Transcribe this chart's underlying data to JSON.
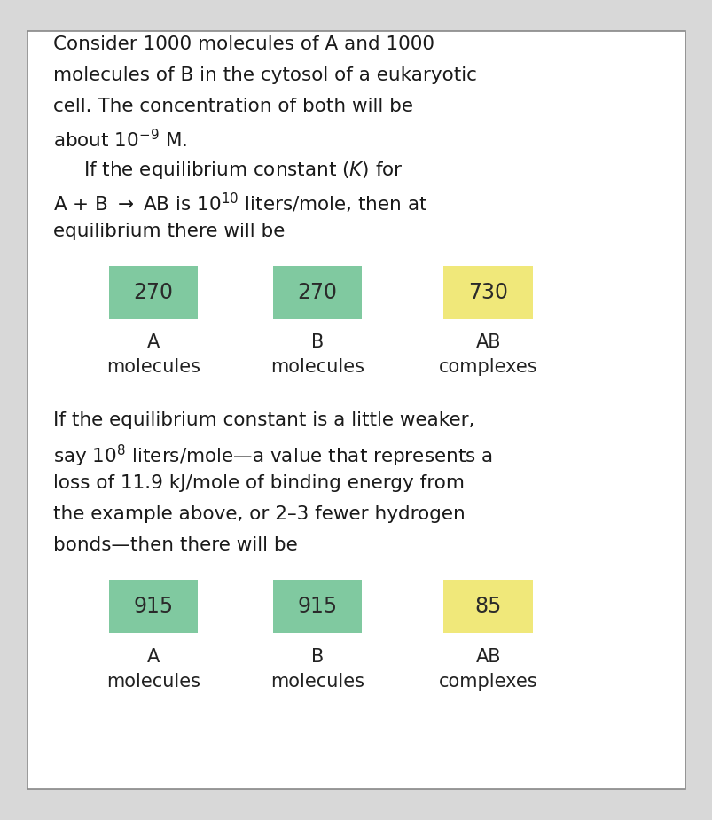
{
  "background_color": "#d8d8d8",
  "panel_color": "#ffffff",
  "panel_border_color": "#888888",
  "text_color": "#1a1a1a",
  "green_box_color": "#80c9a0",
  "yellow_box_color": "#f0e87a",
  "box_number_color": "#2a2a2a",
  "label_color": "#222222",
  "font_size_body": 15.5,
  "font_size_box_number": 17,
  "font_size_label": 15,
  "boxes_row1": [
    {
      "value": "270",
      "color": "#80c9a0",
      "label1": "A",
      "label2": "molecules"
    },
    {
      "value": "270",
      "color": "#80c9a0",
      "label1": "B",
      "label2": "molecules"
    },
    {
      "value": "730",
      "color": "#f0e87a",
      "label1": "AB",
      "label2": "complexes"
    }
  ],
  "boxes_row2": [
    {
      "value": "915",
      "color": "#80c9a0",
      "label1": "A",
      "label2": "molecules"
    },
    {
      "value": "915",
      "color": "#80c9a0",
      "label1": "B",
      "label2": "molecules"
    },
    {
      "value": "85",
      "color": "#f0e87a",
      "label1": "AB",
      "label2": "complexes"
    }
  ]
}
